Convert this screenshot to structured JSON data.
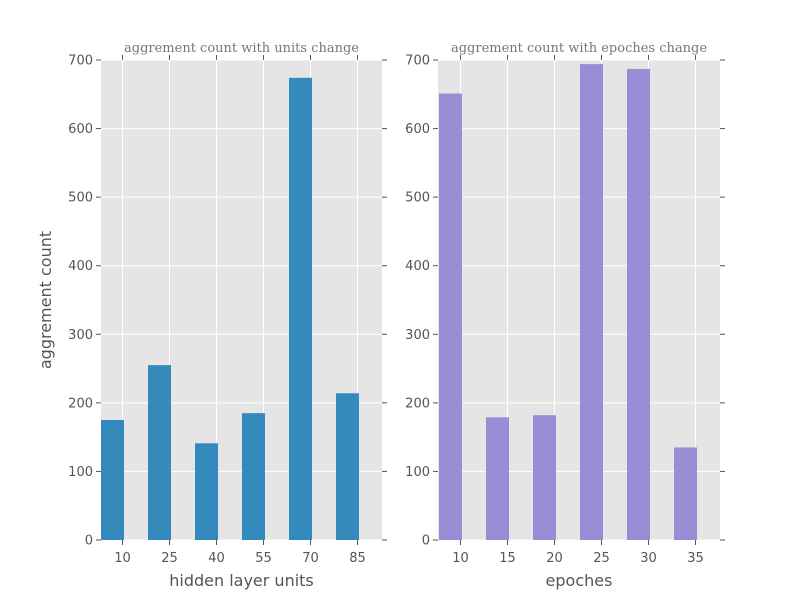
{
  "figure": {
    "background": "#ffffff",
    "axes_background": "#e5e5e5",
    "grid": true
  },
  "chart_data": [
    {
      "type": "bar",
      "title": "aggrement count with units change",
      "xlabel": "hidden layer units",
      "ylabel": "aggrement count",
      "categories": [
        "10",
        "25",
        "40",
        "55",
        "70",
        "85"
      ],
      "values": [
        175,
        255,
        141,
        185,
        674,
        214
      ],
      "ylim": [
        0,
        700
      ],
      "yticks": [
        0,
        100,
        200,
        300,
        400,
        500,
        600,
        700
      ],
      "color": "#348abd"
    },
    {
      "type": "bar",
      "title": "aggrement count with epoches change",
      "xlabel": "epoches",
      "ylabel": "",
      "categories": [
        "10",
        "15",
        "20",
        "25",
        "30",
        "35"
      ],
      "values": [
        651,
        179,
        182,
        694,
        687,
        135
      ],
      "ylim": [
        0,
        700
      ],
      "yticks": [
        0,
        100,
        200,
        300,
        400,
        500,
        600,
        700
      ],
      "color": "#988ed5"
    }
  ]
}
